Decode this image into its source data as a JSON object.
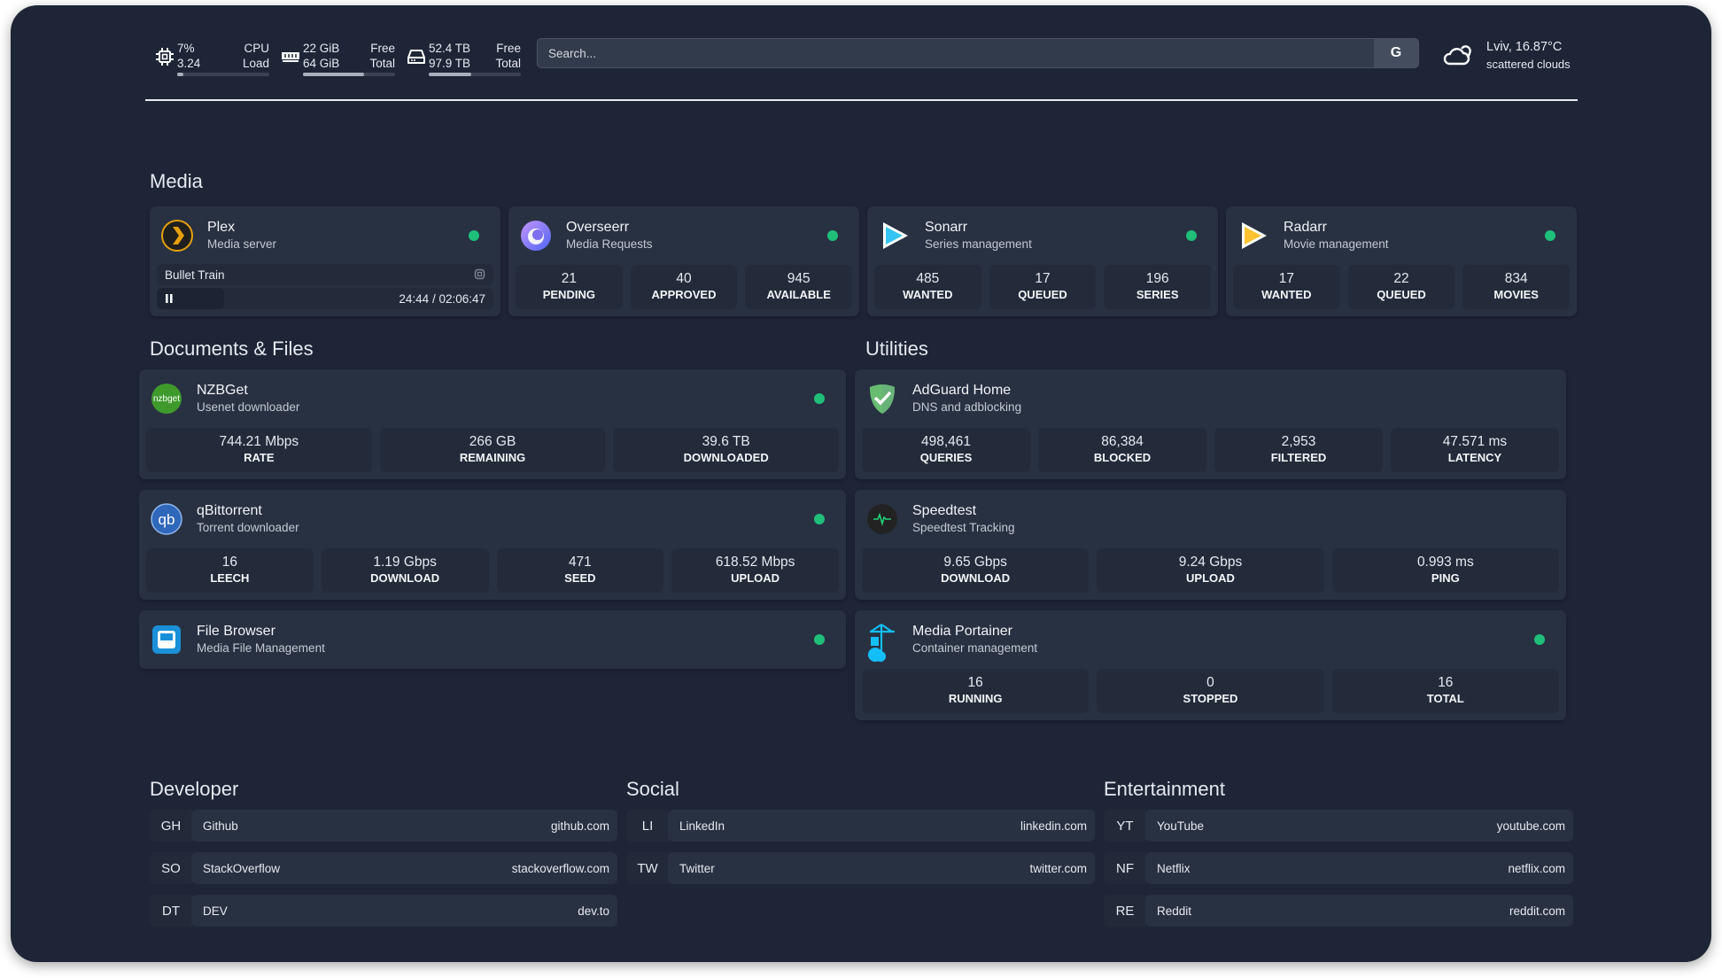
{
  "header": {
    "cpu": {
      "icon": "cpu-icon",
      "value1": "7%",
      "value2": "3.24",
      "label1": "CPU",
      "label2": "Load",
      "fill_percent": 7
    },
    "ram": {
      "icon": "memory-icon",
      "value1": "22 GiB",
      "value2": "64 GiB",
      "label1": "Free",
      "label2": "Total",
      "fill_percent": 66
    },
    "disk": {
      "icon": "hard-drive-icon",
      "value1": "52.4 TB",
      "value2": "97.9 TB",
      "label1": "Free",
      "label2": "Total",
      "fill_percent": 46
    },
    "search": {
      "placeholder": "Search...",
      "value": "",
      "engine_button": "G"
    },
    "weather": {
      "icon": "cloud-sun-icon",
      "location_temp": "Lviv, 16.87°C",
      "description": "scattered clouds"
    }
  },
  "colors": {
    "background": "#1e2537",
    "card": "#283142",
    "stat": "#232b3b",
    "status_ok": "#1fbf7a"
  },
  "sections": {
    "media": "Media",
    "documents": "Documents & Files",
    "utilities": "Utilities"
  },
  "cards": [
    {
      "id": "plex",
      "icon": "plex-icon",
      "title": "Plex",
      "subtitle": "Media server",
      "status": "online",
      "now_playing": {
        "title": "Bullet Train",
        "time": "24:44 / 02:06:47",
        "progress_percent": 20
      }
    },
    {
      "id": "overseerr",
      "icon": "overseerr-icon",
      "title": "Overseerr",
      "subtitle": "Media Requests",
      "status": "online",
      "stats": [
        {
          "value": "21",
          "label": "PENDING"
        },
        {
          "value": "40",
          "label": "APPROVED"
        },
        {
          "value": "945",
          "label": "AVAILABLE"
        }
      ]
    },
    {
      "id": "sonarr",
      "icon": "sonarr-icon",
      "title": "Sonarr",
      "subtitle": "Series management",
      "status": "online",
      "stats": [
        {
          "value": "485",
          "label": "WANTED"
        },
        {
          "value": "17",
          "label": "QUEUED"
        },
        {
          "value": "196",
          "label": "SERIES"
        }
      ]
    },
    {
      "id": "radarr",
      "icon": "radarr-icon",
      "title": "Radarr",
      "subtitle": "Movie management",
      "status": "online",
      "stats": [
        {
          "value": "17",
          "label": "WANTED"
        },
        {
          "value": "22",
          "label": "QUEUED"
        },
        {
          "value": "834",
          "label": "MOVIES"
        }
      ]
    },
    {
      "id": "nzbget",
      "icon": "nzbget-icon",
      "logo_text": "nzbget",
      "title": "NZBGet",
      "subtitle": "Usenet downloader",
      "status": "online",
      "stats": [
        {
          "value": "744.21 Mbps",
          "label": "RATE"
        },
        {
          "value": "266 GB",
          "label": "REMAINING"
        },
        {
          "value": "39.6 TB",
          "label": "DOWNLOADED"
        }
      ]
    },
    {
      "id": "qbittorrent",
      "icon": "qbittorrent-icon",
      "logo_text": "qb",
      "title": "qBittorrent",
      "subtitle": "Torrent downloader",
      "status": "online",
      "stats": [
        {
          "value": "16",
          "label": "LEECH"
        },
        {
          "value": "1.19 Gbps",
          "label": "DOWNLOAD"
        },
        {
          "value": "471",
          "label": "SEED"
        },
        {
          "value": "618.52 Mbps",
          "label": "UPLOAD"
        }
      ]
    },
    {
      "id": "filebrowser",
      "icon": "file-browser-icon",
      "title": "File Browser",
      "subtitle": "Media File Management",
      "status": "online"
    },
    {
      "id": "adguard",
      "icon": "adguard-shield-icon",
      "title": "AdGuard Home",
      "subtitle": "DNS and adblocking",
      "stats": [
        {
          "value": "498,461",
          "label": "QUERIES"
        },
        {
          "value": "86,384",
          "label": "BLOCKED"
        },
        {
          "value": "2,953",
          "label": "FILTERED"
        },
        {
          "value": "47.571 ms",
          "label": "LATENCY"
        }
      ]
    },
    {
      "id": "speedtest",
      "icon": "speedtest-pulse-icon",
      "title": "Speedtest",
      "subtitle": "Speedtest Tracking",
      "stats": [
        {
          "value": "9.65 Gbps",
          "label": "DOWNLOAD"
        },
        {
          "value": "9.24 Gbps",
          "label": "UPLOAD"
        },
        {
          "value": "0.993 ms",
          "label": "PING"
        }
      ]
    },
    {
      "id": "portainer",
      "icon": "portainer-icon",
      "title": "Media Portainer",
      "subtitle": "Container management",
      "status": "online",
      "stats": [
        {
          "value": "16",
          "label": "RUNNING"
        },
        {
          "value": "0",
          "label": "STOPPED"
        },
        {
          "value": "16",
          "label": "TOTAL"
        }
      ]
    }
  ],
  "bookmarks": [
    {
      "title": "Developer",
      "items": [
        {
          "abbr": "GH",
          "name": "Github",
          "url": "github.com"
        },
        {
          "abbr": "SO",
          "name": "StackOverflow",
          "url": "stackoverflow.com"
        },
        {
          "abbr": "DT",
          "name": "DEV",
          "url": "dev.to"
        }
      ]
    },
    {
      "title": "Social",
      "items": [
        {
          "abbr": "LI",
          "name": "LinkedIn",
          "url": "linkedin.com"
        },
        {
          "abbr": "TW",
          "name": "Twitter",
          "url": "twitter.com"
        }
      ]
    },
    {
      "title": "Entertainment",
      "items": [
        {
          "abbr": "YT",
          "name": "YouTube",
          "url": "youtube.com"
        },
        {
          "abbr": "NF",
          "name": "Netflix",
          "url": "netflix.com"
        },
        {
          "abbr": "RE",
          "name": "Reddit",
          "url": "reddit.com"
        }
      ]
    }
  ]
}
